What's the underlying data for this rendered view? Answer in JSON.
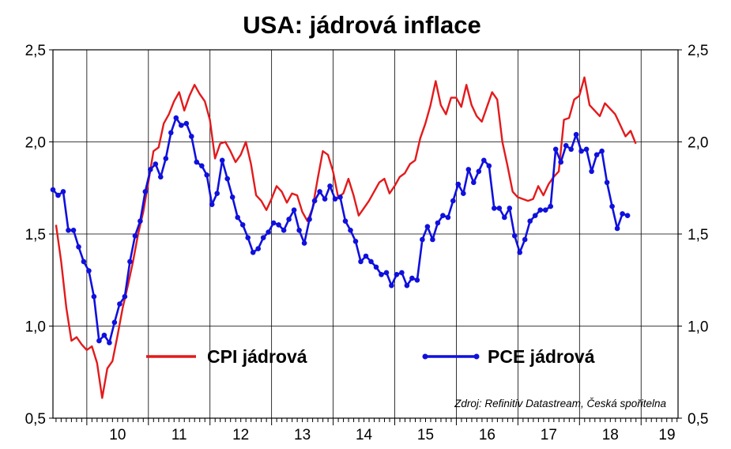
{
  "chart_data": {
    "type": "line",
    "title": "USA: jádrová inflace",
    "source_note": "Zdroj: Refinitiv Datastream, Česká spořitelna",
    "x_tick_labels": [
      "10",
      "11",
      "12",
      "13",
      "14",
      "15",
      "16",
      "17",
      "18",
      "19"
    ],
    "y_tick_labels": [
      "0,5",
      "1,0",
      "1,5",
      "2,0",
      "2,5"
    ],
    "y_ticks": [
      0.5,
      1.0,
      1.5,
      2.0,
      2.5
    ],
    "ylim": [
      0.5,
      2.5
    ],
    "xlim": [
      2009.45,
      2019.6
    ],
    "grid": true,
    "legend_placement": "inside-bottom",
    "colors": {
      "cpi": "#e31a1c",
      "pce": "#1010dd"
    },
    "series": [
      {
        "name": "CPI jádrová",
        "marker": "none",
        "color": "#e31a1c",
        "x_start": 2009.5,
        "x_step": 0.0833,
        "values": [
          1.55,
          1.35,
          1.1,
          0.92,
          0.94,
          0.9,
          0.87,
          0.89,
          0.8,
          0.61,
          0.77,
          0.81,
          0.95,
          1.1,
          1.22,
          1.35,
          1.5,
          1.62,
          1.78,
          1.95,
          1.97,
          2.1,
          2.15,
          2.22,
          2.27,
          2.17,
          2.25,
          2.31,
          2.26,
          2.22,
          2.12,
          1.91,
          1.99,
          2.0,
          1.95,
          1.89,
          1.93,
          2.0,
          1.88,
          1.71,
          1.68,
          1.63,
          1.69,
          1.76,
          1.73,
          1.67,
          1.72,
          1.71,
          1.62,
          1.57,
          1.64,
          1.8,
          1.95,
          1.93,
          1.84,
          1.7,
          1.72,
          1.8,
          1.71,
          1.6,
          1.64,
          1.68,
          1.73,
          1.78,
          1.8,
          1.72,
          1.76,
          1.81,
          1.83,
          1.88,
          1.9,
          2.02,
          2.1,
          2.2,
          2.33,
          2.2,
          2.15,
          2.24,
          2.24,
          2.19,
          2.31,
          2.2,
          2.14,
          2.11,
          2.19,
          2.27,
          2.23,
          2.0,
          1.87,
          1.73,
          1.7,
          1.69,
          1.68,
          1.69,
          1.76,
          1.71,
          1.77,
          1.81,
          1.84,
          2.12,
          2.13,
          2.23,
          2.25,
          2.35,
          2.2,
          2.17,
          2.14,
          2.21,
          2.18,
          2.15,
          2.09,
          2.03,
          2.06,
          1.99
        ]
      },
      {
        "name": "PCE jádrová",
        "marker": "circle",
        "color": "#1010dd",
        "x_start": 2009.45,
        "x_step": 0.0833,
        "values": [
          1.74,
          1.71,
          1.73,
          1.52,
          1.52,
          1.43,
          1.35,
          1.3,
          1.16,
          0.92,
          0.95,
          0.91,
          1.02,
          1.12,
          1.16,
          1.35,
          1.49,
          1.57,
          1.73,
          1.85,
          1.88,
          1.81,
          1.91,
          2.05,
          2.13,
          2.09,
          2.1,
          2.03,
          1.89,
          1.87,
          1.82,
          1.66,
          1.72,
          1.9,
          1.8,
          1.7,
          1.59,
          1.55,
          1.48,
          1.4,
          1.42,
          1.48,
          1.51,
          1.56,
          1.55,
          1.52,
          1.58,
          1.63,
          1.52,
          1.45,
          1.58,
          1.68,
          1.73,
          1.69,
          1.76,
          1.69,
          1.7,
          1.57,
          1.52,
          1.46,
          1.35,
          1.38,
          1.35,
          1.32,
          1.28,
          1.29,
          1.22,
          1.28,
          1.29,
          1.22,
          1.26,
          1.25,
          1.47,
          1.54,
          1.47,
          1.56,
          1.6,
          1.59,
          1.68,
          1.77,
          1.72,
          1.85,
          1.78,
          1.84,
          1.9,
          1.87,
          1.64,
          1.64,
          1.59,
          1.64,
          1.49,
          1.4,
          1.47,
          1.57,
          1.6,
          1.63,
          1.63,
          1.65,
          1.96,
          1.89,
          1.98,
          1.96,
          2.04,
          1.95,
          1.96,
          1.84,
          1.93,
          1.95,
          1.78,
          1.65,
          1.53,
          1.61,
          1.6
        ]
      }
    ]
  }
}
